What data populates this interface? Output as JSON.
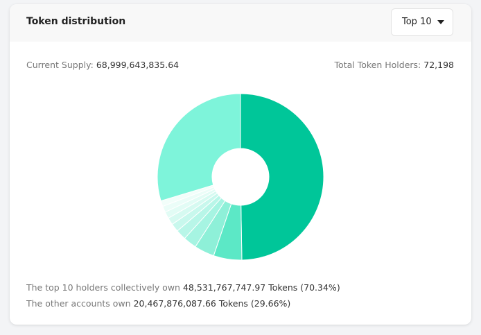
{
  "header": {
    "title": "Token distribution",
    "dropdown": "Top 10"
  },
  "summary": {
    "supply_label": "Current Supply:",
    "supply_value": "68,999,643,835.64",
    "holders_label": "Total Token Holders:",
    "holders_value": "72,198"
  },
  "chart_data": {
    "type": "pie",
    "donut": true,
    "values": [
      49.74,
      5.5,
      3.9,
      2.6,
      2.0,
      1.6,
      1.4,
      1.3,
      1.2,
      1.1,
      29.66
    ],
    "colors": [
      "#00c699",
      "#5ce8c6",
      "#8ef0d8",
      "#a6f4e2",
      "#b8f6e8",
      "#c8f8ed",
      "#d6faf1",
      "#e2fcf5",
      "#ebfdf8",
      "#f2fefa",
      "#7ef4da"
    ]
  },
  "footer": {
    "top_text": "The top 10 holders collectively own",
    "top_value": "48,531,767,747.97 Tokens (70.34%)",
    "other_text": "The other accounts own",
    "other_value": "20,467,876,087.66 Tokens (29.66%)"
  }
}
